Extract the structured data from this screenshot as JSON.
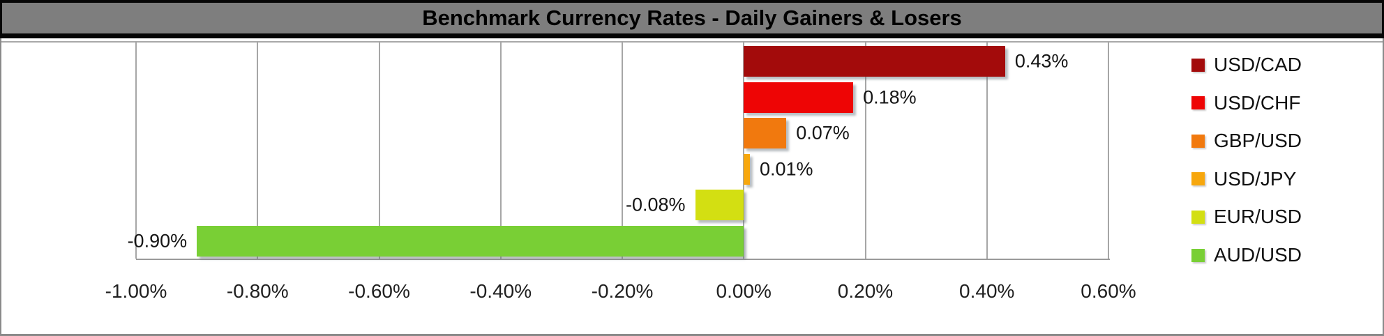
{
  "title_bar": {
    "title": "Benchmark Currency Rates - Daily Gainers & Losers"
  },
  "chart_data": {
    "type": "bar",
    "orientation": "horizontal",
    "title": "Benchmark Currency Rates - Daily Gainers & Losers",
    "categories": [
      "USD/CAD",
      "USD/CHF",
      "GBP/USD",
      "USD/JPY",
      "EUR/USD",
      "AUD/USD"
    ],
    "values": [
      0.43,
      0.18,
      0.07,
      0.01,
      -0.08,
      -0.9
    ],
    "value_labels": [
      "0.43%",
      "0.18%",
      "0.07%",
      "0.01%",
      "-0.08%",
      "-0.90%"
    ],
    "bar_colors": [
      "#A30B0B",
      "#EE0505",
      "#F1790E",
      "#F7A70D",
      "#D3DF12",
      "#79CF35"
    ],
    "xlabel": "",
    "ylabel": "",
    "xlim": [
      -1.0,
      0.6
    ],
    "x_ticks": [
      {
        "value": -1.0,
        "label": "-1.00%"
      },
      {
        "value": -0.8,
        "label": "-0.80%"
      },
      {
        "value": -0.6,
        "label": "-0.60%"
      },
      {
        "value": -0.4,
        "label": "-0.40%"
      },
      {
        "value": -0.2,
        "label": "-0.20%"
      },
      {
        "value": 0.0,
        "label": "0.00%"
      },
      {
        "value": 0.2,
        "label": "0.20%"
      },
      {
        "value": 0.4,
        "label": "0.40%"
      },
      {
        "value": 0.6,
        "label": "0.60%"
      }
    ],
    "grid": true,
    "legend_position": "right",
    "legend_labels": [
      "USD/CAD",
      "USD/CHF",
      "GBP/USD",
      "USD/JPY",
      "EUR/USD",
      "AUD/USD"
    ],
    "colors": {
      "title_bg": "#7E7E7E",
      "title_text": "#000000",
      "grid": "#A6A6A6",
      "axis_line": "#9A9A9A",
      "label_text": "#151515"
    }
  }
}
